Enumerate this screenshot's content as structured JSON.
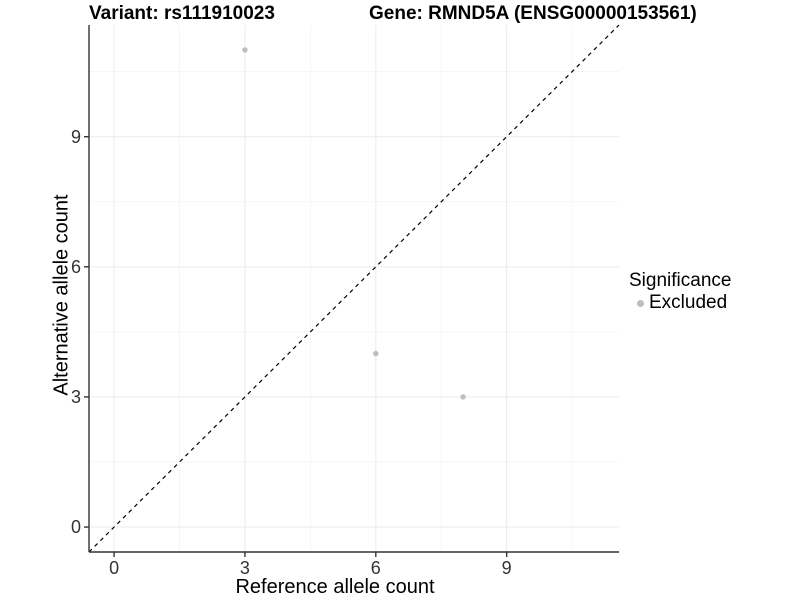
{
  "chart_data": {
    "type": "scatter",
    "title_left": "Variant: rs111910023",
    "title_right": "Gene: RMND5A (ENSG00000153561)",
    "xlabel": "Reference allele count",
    "ylabel": "Alternative allele count",
    "x_ticks": [
      0,
      3,
      6,
      9
    ],
    "y_ticks": [
      0,
      3,
      6,
      9
    ],
    "x_minor_ticks": [
      1.5,
      4.5,
      7.5,
      10.5
    ],
    "y_minor_ticks": [
      1.5,
      4.5,
      7.5,
      10.5
    ],
    "xlim": [
      -0.575,
      11.575
    ],
    "ylim": [
      -0.575,
      11.575
    ],
    "grid": true,
    "identity_line": {
      "show": true,
      "style": "dashed",
      "equation": "y = x",
      "color": "#000000"
    },
    "series": [
      {
        "name": "Excluded",
        "color": "#BEBEBE",
        "points": [
          {
            "x": 3,
            "y": 11
          },
          {
            "x": 6,
            "y": 4
          },
          {
            "x": 8,
            "y": 3
          }
        ]
      }
    ],
    "legend": {
      "title": "Significance",
      "position": "right",
      "items": [
        {
          "label": "Excluded",
          "color": "#BEBEBE",
          "marker": "dot-icon"
        }
      ]
    },
    "colors": {
      "background": "#FFFFFF",
      "grid_major": "#EBEBEB",
      "grid_minor": "#F4F4F4",
      "axis_line": "#333333",
      "tick_mark": "#333333",
      "tick_label": "#333333",
      "point": "#BEBEBE"
    }
  }
}
